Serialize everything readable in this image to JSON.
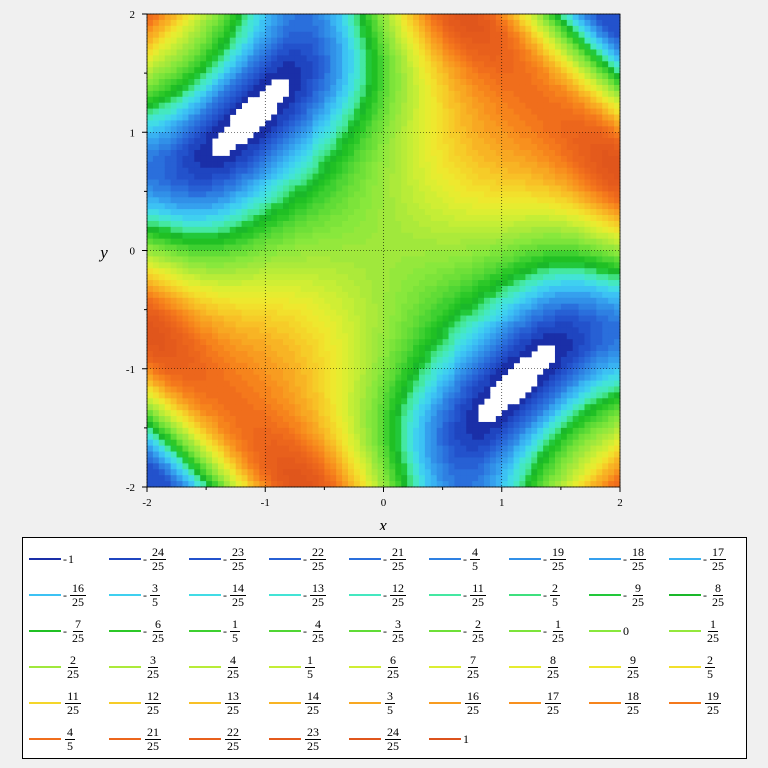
{
  "chart_data": {
    "type": "contour",
    "function_family": "saddle contours in x and y",
    "xlabel": "x",
    "ylabel": "y",
    "xlim": [
      -2,
      2
    ],
    "ylim": [
      -2,
      2
    ],
    "x_ticks": [
      "-2",
      "-1",
      "0",
      "1",
      "2"
    ],
    "y_ticks": [
      "-2",
      "-1",
      "0",
      "1",
      "2"
    ],
    "grid": true,
    "legend_placement": "bottom",
    "levels": [
      {
        "sign": "-",
        "num": "",
        "den": "",
        "text": "1",
        "value": -1.0,
        "color": "#1a2fa8"
      },
      {
        "sign": "-",
        "num": "24",
        "den": "25",
        "value": -0.96,
        "color": "#1f45c0"
      },
      {
        "sign": "-",
        "num": "23",
        "den": "25",
        "value": -0.92,
        "color": "#2352cc"
      },
      {
        "sign": "-",
        "num": "22",
        "den": "25",
        "value": -0.88,
        "color": "#2760d4"
      },
      {
        "sign": "-",
        "num": "21",
        "den": "25",
        "value": -0.84,
        "color": "#2a6fdc"
      },
      {
        "sign": "-",
        "num": "4",
        "den": "5",
        "value": -0.8,
        "color": "#2e80e2"
      },
      {
        "sign": "-",
        "num": "19",
        "den": "25",
        "value": -0.76,
        "color": "#3190e8"
      },
      {
        "sign": "-",
        "num": "18",
        "den": "25",
        "value": -0.72,
        "color": "#35a0ee"
      },
      {
        "sign": "-",
        "num": "17",
        "den": "25",
        "value": -0.68,
        "color": "#39b2f2"
      },
      {
        "sign": "-",
        "num": "16",
        "den": "25",
        "value": -0.64,
        "color": "#3cc2f4"
      },
      {
        "sign": "-",
        "num": "3",
        "den": "5",
        "value": -0.6,
        "color": "#3fd0f0"
      },
      {
        "sign": "-",
        "num": "14",
        "den": "25",
        "value": -0.56,
        "color": "#41dce6"
      },
      {
        "sign": "-",
        "num": "13",
        "den": "25",
        "value": -0.52,
        "color": "#43e4d6"
      },
      {
        "sign": "-",
        "num": "12",
        "den": "25",
        "value": -0.48,
        "color": "#44e8c0"
      },
      {
        "sign": "-",
        "num": "11",
        "den": "25",
        "value": -0.44,
        "color": "#44e8a2"
      },
      {
        "sign": "-",
        "num": "2",
        "den": "5",
        "value": -0.4,
        "color": "#3ee07e"
      },
      {
        "sign": "-",
        "num": "9",
        "den": "25",
        "value": -0.36,
        "color": "#22c83a"
      },
      {
        "sign": "-",
        "num": "8",
        "den": "25",
        "value": -0.32,
        "color": "#1ab82a"
      },
      {
        "sign": "-",
        "num": "7",
        "den": "25",
        "value": -0.28,
        "color": "#20c024"
      },
      {
        "sign": "-",
        "num": "6",
        "den": "25",
        "value": -0.24,
        "color": "#2cc828"
      },
      {
        "sign": "-",
        "num": "1",
        "den": "5",
        "value": -0.2,
        "color": "#3ed030"
      },
      {
        "sign": "-",
        "num": "4",
        "den": "25",
        "value": -0.16,
        "color": "#50d634"
      },
      {
        "sign": "-",
        "num": "3",
        "den": "25",
        "value": -0.12,
        "color": "#60dc36"
      },
      {
        "sign": "-",
        "num": "2",
        "den": "25",
        "value": -0.08,
        "color": "#6ee038"
      },
      {
        "sign": "-",
        "num": "1",
        "den": "25",
        "value": -0.04,
        "color": "#7ce43a"
      },
      {
        "sign": "",
        "num": "",
        "den": "",
        "text": "0",
        "value": 0.0,
        "color": "#88e83c"
      },
      {
        "sign": "",
        "num": "1",
        "den": "25",
        "value": 0.04,
        "color": "#94e83c"
      },
      {
        "sign": "",
        "num": "2",
        "den": "25",
        "value": 0.08,
        "color": "#a0e83c"
      },
      {
        "sign": "",
        "num": "3",
        "den": "25",
        "value": 0.12,
        "color": "#acea3a"
      },
      {
        "sign": "",
        "num": "4",
        "den": "25",
        "value": 0.16,
        "color": "#b8ec38"
      },
      {
        "sign": "",
        "num": "1",
        "den": "5",
        "value": 0.2,
        "color": "#c4ee36"
      },
      {
        "sign": "",
        "num": "6",
        "den": "25",
        "value": 0.24,
        "color": "#d0ee34"
      },
      {
        "sign": "",
        "num": "7",
        "den": "25",
        "value": 0.28,
        "color": "#dcee32"
      },
      {
        "sign": "",
        "num": "8",
        "den": "25",
        "value": 0.32,
        "color": "#e6ec30"
      },
      {
        "sign": "",
        "num": "9",
        "den": "25",
        "value": 0.36,
        "color": "#eee82e"
      },
      {
        "sign": "",
        "num": "2",
        "den": "5",
        "value": 0.4,
        "color": "#f2e02c"
      },
      {
        "sign": "",
        "num": "11",
        "den": "25",
        "value": 0.44,
        "color": "#f4d62a"
      },
      {
        "sign": "",
        "num": "12",
        "den": "25",
        "value": 0.48,
        "color": "#f6cc28"
      },
      {
        "sign": "",
        "num": "13",
        "den": "25",
        "value": 0.52,
        "color": "#f8c026"
      },
      {
        "sign": "",
        "num": "14",
        "den": "25",
        "value": 0.56,
        "color": "#f8b424"
      },
      {
        "sign": "",
        "num": "3",
        "den": "5",
        "value": 0.6,
        "color": "#f8a822"
      },
      {
        "sign": "",
        "num": "16",
        "den": "25",
        "value": 0.64,
        "color": "#f89c20"
      },
      {
        "sign": "",
        "num": "17",
        "den": "25",
        "value": 0.68,
        "color": "#f8901e"
      },
      {
        "sign": "",
        "num": "18",
        "den": "25",
        "value": 0.72,
        "color": "#f6841c"
      },
      {
        "sign": "",
        "num": "19",
        "den": "25",
        "value": 0.76,
        "color": "#f4781c"
      },
      {
        "sign": "",
        "num": "4",
        "den": "5",
        "value": 0.8,
        "color": "#f06e1c"
      },
      {
        "sign": "",
        "num": "21",
        "den": "25",
        "value": 0.84,
        "color": "#ec661c"
      },
      {
        "sign": "",
        "num": "22",
        "den": "25",
        "value": 0.88,
        "color": "#e8601c"
      },
      {
        "sign": "",
        "num": "23",
        "den": "25",
        "value": 0.92,
        "color": "#e45a1c"
      },
      {
        "sign": "",
        "num": "24",
        "den": "25",
        "value": 0.96,
        "color": "#e0561c"
      },
      {
        "sign": "",
        "num": "",
        "den": "",
        "text": "1",
        "value": 1.0,
        "color": "#dc521c"
      }
    ]
  }
}
